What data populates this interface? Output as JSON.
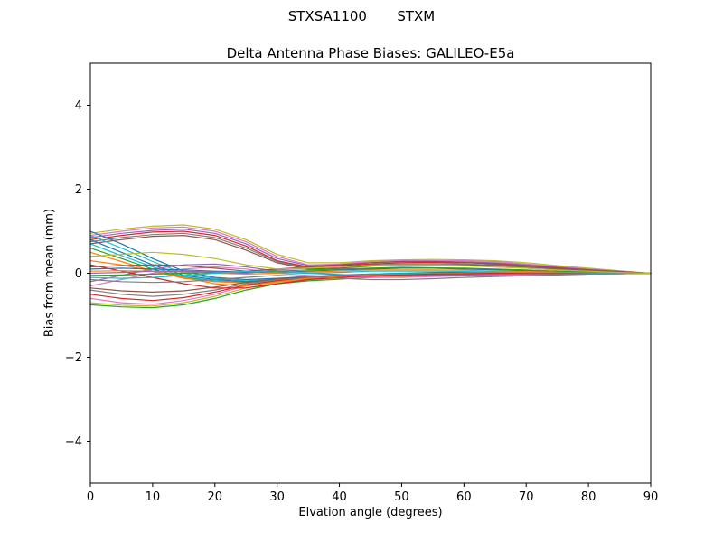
{
  "chart_data": {
    "type": "line",
    "suptitle": "STXSA1100       STXM",
    "title": "Delta Antenna Phase Biases: GALILEO-E5a",
    "xlabel": "Elvation angle (degrees)",
    "ylabel": "Bias from mean (mm)",
    "xlim": [
      0,
      90
    ],
    "ylim": [
      -5,
      5
    ],
    "xticks": [
      0,
      10,
      20,
      30,
      40,
      50,
      60,
      70,
      80,
      90
    ],
    "yticks": [
      -4,
      -2,
      0,
      2,
      4
    ],
    "grid": false,
    "legend": "none",
    "palette": [
      "#1f77b4",
      "#ff7f0e",
      "#2ca02c",
      "#d62728",
      "#9467bd",
      "#8c564b",
      "#e377c2",
      "#7f7f7f",
      "#bcbd22",
      "#17becf"
    ],
    "x": [
      0,
      5,
      10,
      15,
      20,
      25,
      30,
      35,
      40,
      45,
      50,
      55,
      60,
      65,
      70,
      75,
      80,
      85,
      90
    ],
    "series": [
      {
        "name": "line-01",
        "color": "#bcbd22",
        "values": [
          0.95,
          1.05,
          1.12,
          1.15,
          1.05,
          0.8,
          0.45,
          0.25,
          0.25,
          0.3,
          0.32,
          0.33,
          0.32,
          0.3,
          0.25,
          0.18,
          0.12,
          0.06,
          0.0
        ]
      },
      {
        "name": "line-02",
        "color": "#e377c2",
        "values": [
          0.9,
          1.0,
          1.08,
          1.1,
          1.0,
          0.75,
          0.4,
          0.2,
          0.22,
          0.28,
          0.3,
          0.3,
          0.3,
          0.28,
          0.22,
          0.16,
          0.1,
          0.05,
          0.0
        ]
      },
      {
        "name": "line-03",
        "color": "#9467bd",
        "values": [
          0.85,
          0.95,
          1.02,
          1.05,
          0.95,
          0.7,
          0.35,
          0.18,
          0.2,
          0.25,
          0.28,
          0.28,
          0.27,
          0.25,
          0.2,
          0.14,
          0.09,
          0.04,
          0.0
        ]
      },
      {
        "name": "line-04",
        "color": "#d62728",
        "values": [
          0.8,
          0.9,
          0.98,
          1.0,
          0.9,
          0.65,
          0.3,
          0.15,
          0.18,
          0.22,
          0.25,
          0.26,
          0.25,
          0.23,
          0.18,
          0.13,
          0.08,
          0.04,
          0.0
        ]
      },
      {
        "name": "line-05",
        "color": "#7f7f7f",
        "values": [
          0.75,
          0.85,
          0.92,
          0.95,
          0.85,
          0.6,
          0.28,
          0.12,
          0.15,
          0.2,
          0.22,
          0.23,
          0.22,
          0.2,
          0.16,
          0.11,
          0.07,
          0.03,
          0.0
        ]
      },
      {
        "name": "line-06",
        "color": "#8c564b",
        "values": [
          0.7,
          0.8,
          0.88,
          0.9,
          0.8,
          0.55,
          0.25,
          0.1,
          0.12,
          0.17,
          0.2,
          0.2,
          0.2,
          0.18,
          0.14,
          0.1,
          0.06,
          0.03,
          0.0
        ]
      },
      {
        "name": "line-07",
        "color": "#1f77b4",
        "values": [
          1.0,
          0.7,
          0.35,
          0.05,
          -0.1,
          -0.15,
          -0.12,
          -0.08,
          -0.04,
          -0.02,
          0.0,
          0.02,
          0.02,
          0.02,
          0.01,
          0.01,
          0.0,
          0.0,
          0.0
        ]
      },
      {
        "name": "line-08",
        "color": "#17becf",
        "values": [
          0.9,
          0.6,
          0.28,
          0.0,
          -0.12,
          -0.18,
          -0.14,
          -0.1,
          -0.05,
          -0.02,
          0.0,
          0.0,
          0.0,
          0.0,
          0.0,
          0.0,
          0.0,
          0.0,
          0.0
        ]
      },
      {
        "name": "line-09",
        "color": "#1f77b4",
        "values": [
          0.8,
          0.5,
          0.2,
          -0.05,
          -0.15,
          -0.2,
          -0.16,
          -0.1,
          -0.06,
          -0.03,
          -0.01,
          0.0,
          0.0,
          0.0,
          0.0,
          0.0,
          0.0,
          0.0,
          0.0
        ]
      },
      {
        "name": "line-10",
        "color": "#17becf",
        "values": [
          0.7,
          0.42,
          0.15,
          -0.08,
          -0.18,
          -0.22,
          -0.18,
          -0.12,
          -0.07,
          -0.04,
          -0.02,
          0.0,
          0.0,
          0.0,
          0.0,
          0.0,
          0.0,
          0.0,
          0.0
        ]
      },
      {
        "name": "line-11",
        "color": "#2ca02c",
        "values": [
          0.6,
          0.35,
          0.1,
          -0.1,
          -0.2,
          -0.22,
          -0.18,
          -0.13,
          -0.08,
          -0.05,
          -0.02,
          -0.01,
          0.0,
          0.0,
          0.0,
          0.0,
          0.0,
          0.0,
          0.0
        ]
      },
      {
        "name": "line-12",
        "color": "#ff7f0e",
        "values": [
          0.5,
          0.28,
          0.05,
          -0.12,
          -0.2,
          -0.23,
          -0.19,
          -0.14,
          -0.09,
          -0.05,
          -0.03,
          -0.01,
          0.0,
          0.0,
          0.0,
          0.0,
          0.0,
          0.0,
          0.0
        ]
      },
      {
        "name": "line-13",
        "color": "#2ca02c",
        "values": [
          -0.75,
          -0.8,
          -0.82,
          -0.75,
          -0.6,
          -0.4,
          -0.25,
          -0.18,
          -0.14,
          -0.1,
          -0.08,
          -0.07,
          -0.06,
          -0.05,
          -0.04,
          -0.03,
          -0.02,
          -0.01,
          0.0
        ]
      },
      {
        "name": "line-14",
        "color": "#bcbd22",
        "values": [
          -0.7,
          -0.76,
          -0.78,
          -0.7,
          -0.55,
          -0.35,
          -0.22,
          -0.15,
          -0.12,
          -0.09,
          -0.07,
          -0.06,
          -0.05,
          -0.04,
          -0.03,
          -0.02,
          -0.02,
          -0.01,
          0.0
        ]
      },
      {
        "name": "line-15",
        "color": "#e377c2",
        "values": [
          -0.6,
          -0.7,
          -0.74,
          -0.65,
          -0.5,
          -0.3,
          -0.2,
          -0.13,
          -0.1,
          -0.08,
          -0.06,
          -0.05,
          -0.05,
          -0.04,
          -0.03,
          -0.02,
          -0.01,
          -0.01,
          0.0
        ]
      },
      {
        "name": "line-16",
        "color": "#d62728",
        "values": [
          -0.5,
          -0.6,
          -0.65,
          -0.58,
          -0.45,
          -0.28,
          -0.18,
          -0.12,
          -0.09,
          -0.07,
          -0.05,
          -0.05,
          -0.04,
          -0.03,
          -0.03,
          -0.02,
          -0.01,
          0.0,
          0.0
        ]
      },
      {
        "name": "line-17",
        "color": "#7f7f7f",
        "values": [
          -0.4,
          -0.5,
          -0.55,
          -0.5,
          -0.4,
          -0.25,
          -0.15,
          -0.1,
          -0.08,
          -0.06,
          -0.05,
          -0.04,
          -0.03,
          -0.03,
          -0.02,
          -0.01,
          -0.01,
          0.0,
          0.0
        ]
      },
      {
        "name": "line-18",
        "color": "#8c564b",
        "values": [
          -0.35,
          -0.42,
          -0.45,
          -0.42,
          -0.33,
          -0.22,
          -0.13,
          -0.09,
          -0.07,
          -0.05,
          -0.04,
          -0.03,
          -0.03,
          -0.02,
          -0.02,
          -0.01,
          -0.01,
          0.0,
          0.0
        ]
      },
      {
        "name": "line-19",
        "color": "#e377c2",
        "values": [
          -0.3,
          -0.15,
          0.0,
          0.1,
          0.15,
          0.1,
          0.0,
          -0.05,
          -0.08,
          -0.1,
          -0.1,
          -0.08,
          -0.06,
          -0.05,
          -0.04,
          -0.03,
          -0.02,
          -0.01,
          0.0
        ]
      },
      {
        "name": "line-20",
        "color": "#9467bd",
        "values": [
          -0.2,
          -0.05,
          0.1,
          0.2,
          0.22,
          0.15,
          0.05,
          0.0,
          -0.03,
          -0.05,
          -0.06,
          -0.05,
          -0.04,
          -0.03,
          -0.02,
          -0.02,
          -0.01,
          0.0,
          0.0
        ]
      },
      {
        "name": "line-21",
        "color": "#ff7f0e",
        "values": [
          0.3,
          0.2,
          0.05,
          -0.1,
          -0.25,
          -0.3,
          -0.2,
          -0.12,
          -0.08,
          -0.05,
          -0.03,
          -0.02,
          -0.01,
          0.0,
          0.0,
          0.0,
          0.0,
          0.0,
          0.0
        ]
      },
      {
        "name": "line-22",
        "color": "#d62728",
        "values": [
          0.2,
          0.05,
          -0.1,
          -0.25,
          -0.35,
          -0.35,
          -0.25,
          -0.15,
          -0.1,
          -0.06,
          -0.04,
          -0.02,
          -0.01,
          0.0,
          0.0,
          0.0,
          0.0,
          0.0,
          0.0
        ]
      },
      {
        "name": "line-23",
        "color": "#1f77b4",
        "values": [
          0.1,
          0.12,
          0.1,
          0.08,
          0.05,
          0.03,
          0.02,
          0.05,
          0.08,
          0.1,
          0.12,
          0.12,
          0.1,
          0.08,
          0.06,
          0.04,
          0.03,
          0.01,
          0.0
        ]
      },
      {
        "name": "line-24",
        "color": "#ff7f0e",
        "values": [
          0.05,
          0.06,
          0.05,
          0.03,
          0.0,
          -0.02,
          0.0,
          0.03,
          0.05,
          0.08,
          0.08,
          0.08,
          0.07,
          0.05,
          0.04,
          0.03,
          0.02,
          0.01,
          0.0
        ]
      },
      {
        "name": "line-25",
        "color": "#2ca02c",
        "values": [
          -0.05,
          -0.04,
          -0.02,
          0.0,
          0.02,
          0.02,
          0.05,
          0.08,
          0.1,
          0.12,
          0.14,
          0.13,
          0.12,
          0.1,
          0.08,
          0.05,
          0.03,
          0.02,
          0.0
        ]
      },
      {
        "name": "line-26",
        "color": "#9467bd",
        "values": [
          0.0,
          0.02,
          0.05,
          0.05,
          0.03,
          0.0,
          0.08,
          0.12,
          0.15,
          0.18,
          0.2,
          0.2,
          0.18,
          0.15,
          0.12,
          0.08,
          0.05,
          0.02,
          0.0
        ]
      },
      {
        "name": "line-27",
        "color": "#8c564b",
        "values": [
          0.15,
          0.18,
          0.2,
          0.18,
          0.12,
          0.05,
          0.1,
          0.15,
          0.2,
          0.25,
          0.28,
          0.28,
          0.26,
          0.22,
          0.18,
          0.12,
          0.08,
          0.04,
          0.0
        ]
      },
      {
        "name": "line-28",
        "color": "#17becf",
        "values": [
          -0.1,
          -0.12,
          -0.1,
          -0.05,
          0.0,
          0.05,
          0.02,
          0.0,
          0.02,
          0.05,
          0.05,
          0.05,
          0.04,
          0.03,
          0.02,
          0.02,
          0.01,
          0.0,
          0.0
        ]
      },
      {
        "name": "line-29",
        "color": "#7f7f7f",
        "values": [
          -0.15,
          -0.2,
          -0.22,
          -0.2,
          -0.15,
          -0.1,
          -0.05,
          -0.08,
          -0.12,
          -0.15,
          -0.15,
          -0.13,
          -0.1,
          -0.08,
          -0.06,
          -0.04,
          -0.02,
          -0.01,
          0.0
        ]
      },
      {
        "name": "line-30",
        "color": "#bcbd22",
        "values": [
          0.4,
          0.45,
          0.5,
          0.45,
          0.35,
          0.2,
          0.1,
          0.12,
          0.15,
          0.18,
          0.2,
          0.2,
          0.18,
          0.15,
          0.12,
          0.08,
          0.05,
          0.02,
          0.0
        ]
      }
    ]
  }
}
